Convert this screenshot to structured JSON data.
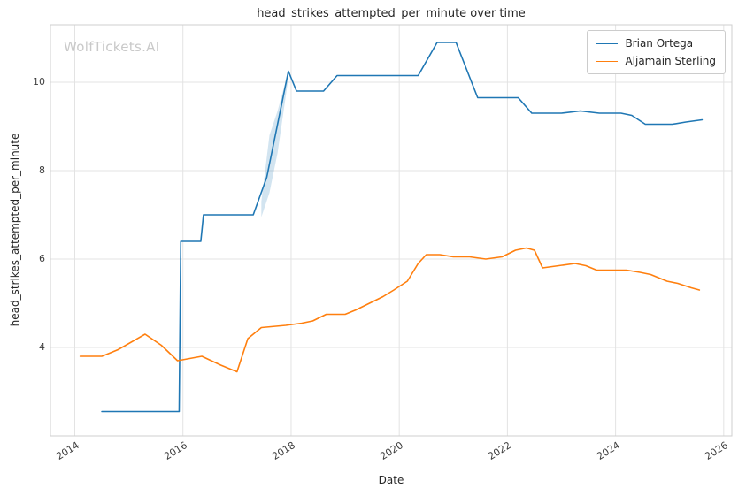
{
  "figure": {
    "title": "head_strikes_attempted_per_minute over time",
    "watermark": "WolfTickets.AI",
    "xlabel": "Date",
    "ylabel": "head_strikes_attempted_per_minute"
  },
  "chart_data": {
    "type": "line",
    "title": "head_strikes_attempted_per_minute over time",
    "xlabel": "Date",
    "ylabel": "head_strikes_attempted_per_minute",
    "xlim": [
      2013.55,
      2026.15
    ],
    "ylim": [
      2.0,
      11.3
    ],
    "xticks": [
      2014,
      2016,
      2018,
      2020,
      2022,
      2024,
      2026
    ],
    "yticks": [
      4,
      6,
      8,
      10
    ],
    "grid": true,
    "grid_color": "#e3e3e3",
    "spine_color": "#cfcfcf",
    "legend_position": "upper right",
    "series": [
      {
        "name": "Brian Ortega",
        "color": "#1f77b4",
        "x": [
          2014.5,
          2015.93,
          2015.96,
          2016.33,
          2016.38,
          2017.3,
          2017.55,
          2017.95,
          2018.1,
          2018.6,
          2018.85,
          2020.35,
          2020.7,
          2021.05,
          2021.45,
          2022.2,
          2022.45,
          2023.0,
          2023.35,
          2023.7,
          2024.1,
          2024.3,
          2024.55,
          2025.05,
          2025.3,
          2025.6
        ],
        "y": [
          2.55,
          2.55,
          6.4,
          6.4,
          7.0,
          7.0,
          7.85,
          10.25,
          9.8,
          9.8,
          10.15,
          10.15,
          10.9,
          10.9,
          9.65,
          9.65,
          9.3,
          9.3,
          9.35,
          9.3,
          9.3,
          9.25,
          9.05,
          9.05,
          9.1,
          9.15
        ]
      },
      {
        "name": "Aljamain Sterling",
        "color": "#ff7f0e",
        "x": [
          2014.1,
          2014.5,
          2014.8,
          2015.3,
          2015.6,
          2015.9,
          2016.35,
          2016.7,
          2017.0,
          2017.2,
          2017.45,
          2017.9,
          2018.2,
          2018.4,
          2018.65,
          2019.0,
          2019.2,
          2019.45,
          2019.7,
          2019.9,
          2020.15,
          2020.35,
          2020.5,
          2020.75,
          2021.0,
          2021.3,
          2021.6,
          2021.9,
          2022.15,
          2022.35,
          2022.5,
          2022.65,
          2022.95,
          2023.25,
          2023.45,
          2023.65,
          2024.0,
          2024.2,
          2024.45,
          2024.65,
          2024.95,
          2025.15,
          2025.4,
          2025.55
        ],
        "y": [
          3.8,
          3.8,
          3.95,
          4.3,
          4.05,
          3.7,
          3.8,
          3.6,
          3.45,
          4.2,
          4.45,
          4.5,
          4.55,
          4.6,
          4.75,
          4.75,
          4.85,
          5.0,
          5.15,
          5.3,
          5.5,
          5.9,
          6.1,
          6.1,
          6.05,
          6.05,
          6.0,
          6.05,
          6.2,
          6.25,
          6.2,
          5.8,
          5.85,
          5.9,
          5.85,
          5.75,
          5.75,
          5.75,
          5.7,
          5.65,
          5.5,
          5.45,
          5.35,
          5.3
        ]
      }
    ],
    "confidence_band": {
      "series": "Brian Ortega",
      "color": "#1f77b4",
      "opacity": 0.2,
      "x": [
        2017.45,
        2017.6,
        2017.75,
        2017.95
      ],
      "upper": [
        7.3,
        8.8,
        9.35,
        10.25
      ],
      "lower": [
        6.95,
        7.5,
        8.4,
        10.1
      ]
    }
  }
}
